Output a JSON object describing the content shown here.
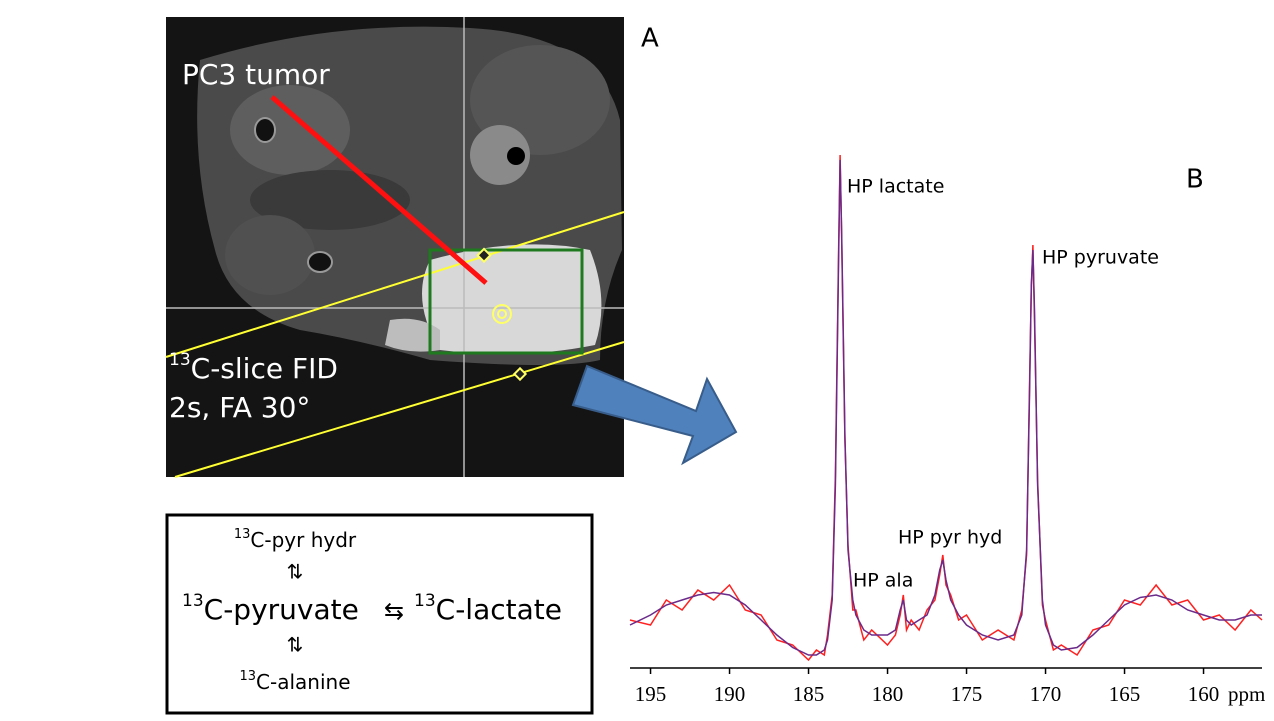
{
  "panel_a": {
    "label": "A",
    "tumor_label": "PC3 tumor",
    "slice_label": {
      "sup": "13",
      "text": "C-slice FID"
    },
    "params": "2s, FA 30°"
  },
  "scheme": {
    "top": {
      "sup": "13",
      "text": "C-pyr hydr"
    },
    "top_arrow": "⇅",
    "left": {
      "sup": "13",
      "text": "C-pyruvate"
    },
    "mid_arrow": "⇆",
    "right": {
      "sup": "13",
      "text": "C-lactate"
    },
    "bottom_arrow": "⇅",
    "bottom": {
      "sup": "13",
      "text": "C-alanine"
    }
  },
  "chart_data": {
    "type": "line",
    "panel_label": "B",
    "xlabel": "ppm",
    "xlim": [
      196.3,
      156.3
    ],
    "xticks": [
      195,
      190,
      185,
      180,
      175,
      170,
      165,
      160
    ],
    "ylim": [
      0,
      102
    ],
    "annotations": [
      "HP lactate",
      "HP pyruvate",
      "HP pyr hyd",
      "HP ala"
    ],
    "x": [
      196.3,
      195,
      194,
      193,
      192,
      191,
      190,
      189,
      188,
      187,
      186,
      185,
      184.5,
      184,
      183.8,
      183.5,
      183.3,
      183.1,
      183,
      182.9,
      182.7,
      182.5,
      182.2,
      182,
      181.5,
      181,
      180,
      179.5,
      179.2,
      179,
      178.8,
      178.5,
      178,
      177.5,
      177,
      176.7,
      176.5,
      176.3,
      176,
      175.5,
      175,
      174,
      173,
      172,
      171.5,
      171.2,
      171,
      170.9,
      170.8,
      170.7,
      170.5,
      170.2,
      170,
      169.5,
      169,
      168,
      167,
      166,
      165,
      164,
      163,
      162,
      161,
      160,
      159,
      158,
      157,
      156.3
    ],
    "series": [
      {
        "color": "#ff2020",
        "values": [
          8,
          7,
          12,
          10,
          14,
          12,
          15,
          10,
          9,
          4,
          3,
          0,
          2,
          1,
          5,
          13,
          37,
          82,
          101,
          84,
          44,
          23,
          10,
          10,
          4,
          6,
          3,
          5,
          9,
          13,
          6,
          8,
          6,
          10,
          12,
          17,
          21,
          15,
          13,
          8,
          9,
          4,
          6,
          4,
          10,
          21,
          57,
          74,
          83,
          68,
          36,
          11,
          8,
          2,
          3,
          1,
          6,
          7,
          12,
          11,
          15,
          11,
          12,
          8,
          9,
          6,
          10,
          8
        ]
      },
      {
        "color": "#6a2a8a",
        "values": [
          7,
          9,
          11,
          12,
          13,
          13.5,
          13,
          11,
          8,
          5,
          2.5,
          1,
          1,
          2,
          4,
          12,
          35,
          80,
          100,
          85,
          45,
          22,
          12,
          9,
          6,
          5,
          5,
          6,
          10,
          12,
          8,
          7,
          8,
          9,
          13,
          18,
          20,
          16,
          12,
          9,
          7,
          5,
          4,
          5,
          9,
          22,
          55,
          75,
          82,
          70,
          35,
          12,
          7,
          3,
          2,
          2.5,
          5,
          8,
          11,
          12.5,
          13,
          12,
          10,
          9,
          8,
          8,
          9,
          9
        ]
      }
    ]
  }
}
